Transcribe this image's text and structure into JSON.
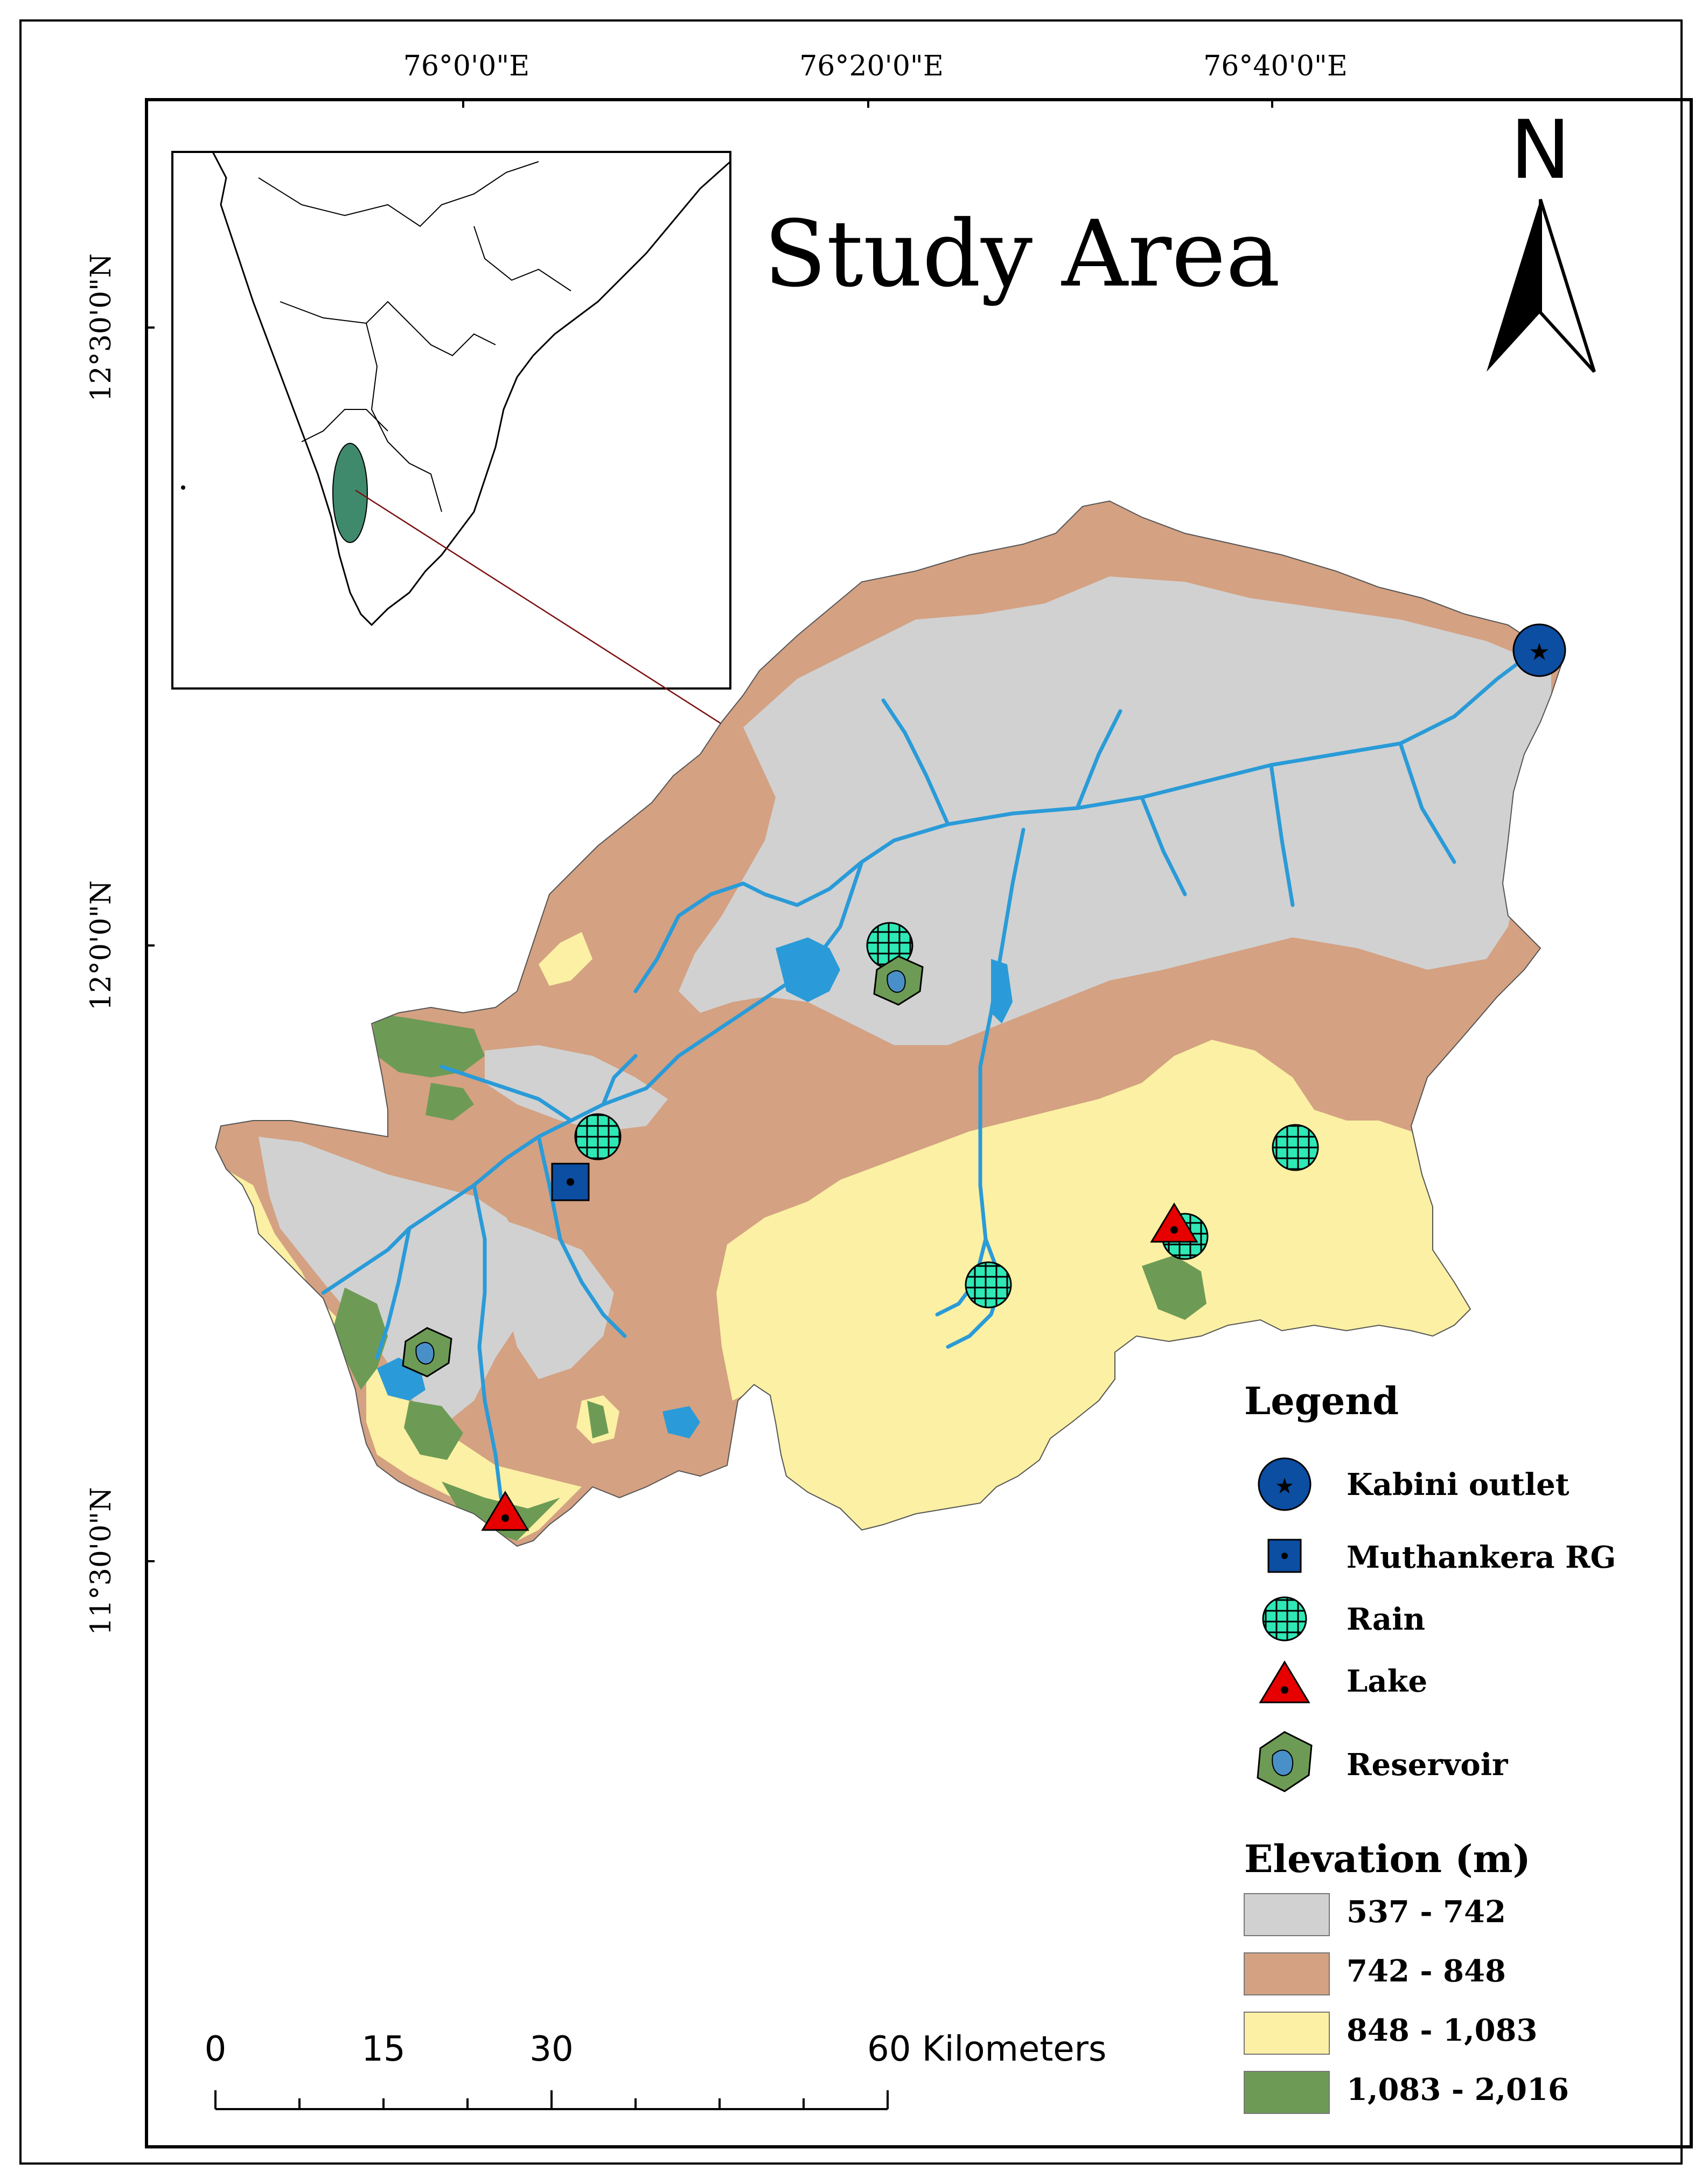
{
  "map": {
    "title": "Study Area",
    "north_label": "N",
    "longitude_labels": [
      "76°0'0\"E",
      "76°20'0\"E",
      "76°40'0\"E"
    ],
    "latitude_labels": [
      "12°30'0\"N",
      "12°0'0\"N",
      "11°30'0\"N"
    ]
  },
  "legend": {
    "title": "Legend",
    "items": [
      {
        "label": "Kabini outlet",
        "icon": "blue-circle-star-icon",
        "color": "#0b4ea2"
      },
      {
        "label": "Muthankera RG",
        "icon": "blue-square-dot-icon",
        "color": "#0b4ea2"
      },
      {
        "label": "Rain",
        "icon": "cyan-grid-circle-icon",
        "color": "#2ee8b6"
      },
      {
        "label": "Lake",
        "icon": "red-triangle-dot-icon",
        "color": "#e60000"
      },
      {
        "label": "Reservoir",
        "icon": "reservoir-icon",
        "color": "#4a90c8"
      }
    ]
  },
  "elevation": {
    "title": "Elevation (m)",
    "classes": [
      {
        "label": "537 - 742",
        "color": "#d1d1d1"
      },
      {
        "label": "742 - 848",
        "color": "#d4a182"
      },
      {
        "label": "848 - 1,083",
        "color": "#fbf0a3"
      },
      {
        "label": "1,083 - 2,016",
        "color": "#6d9b55"
      }
    ]
  },
  "scale_bar": {
    "ticks": [
      "0",
      "15",
      "30",
      "60 Kilometers"
    ]
  },
  "colors": {
    "river": "#2a9bd8",
    "frame": "#000000"
  }
}
